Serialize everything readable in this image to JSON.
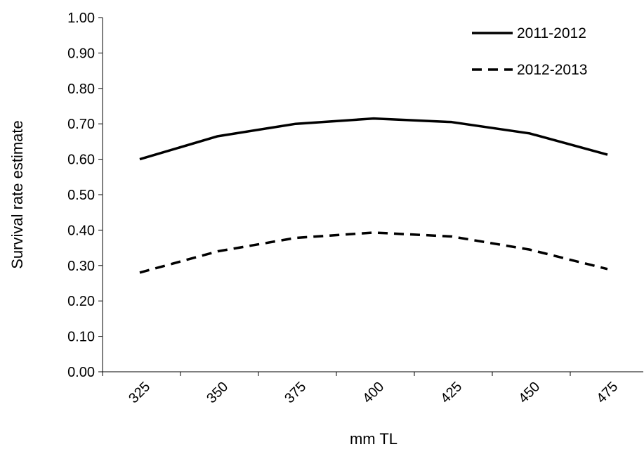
{
  "chart_data": {
    "type": "line",
    "title": "",
    "xlabel": "mm TL",
    "ylabel": "Survival rate estimate",
    "categories": [
      "325",
      "350",
      "375",
      "400",
      "425",
      "450",
      "475"
    ],
    "y_ticks": [
      "0.00",
      "0.10",
      "0.20",
      "0.30",
      "0.40",
      "0.50",
      "0.60",
      "0.70",
      "0.80",
      "0.90",
      "1.00"
    ],
    "ylim": [
      0,
      1
    ],
    "grid": false,
    "legend_position": "top-right",
    "series": [
      {
        "name": "2011-2012",
        "style": "solid",
        "color": "#000000",
        "values": [
          0.6,
          0.665,
          0.7,
          0.715,
          0.705,
          0.673,
          0.613
        ]
      },
      {
        "name": "2012-2013",
        "style": "dashed",
        "color": "#000000",
        "values": [
          0.28,
          0.34,
          0.378,
          0.393,
          0.382,
          0.345,
          0.29
        ]
      }
    ]
  }
}
